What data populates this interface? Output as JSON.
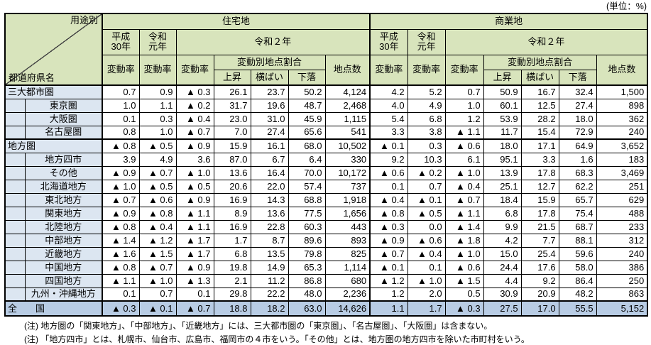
{
  "unit_label": "(単位：%)",
  "header": {
    "usage_label": "用途別",
    "prefecture_label": "都道府県名",
    "residential": "住宅地",
    "commercial": "商業地",
    "year_h30": "平成\n30年",
    "year_r1": "令和\n元年",
    "year_r2": "令和２年",
    "rate": "変動率",
    "share_group": "変動別地点割合",
    "up": "上昇",
    "flat": "横ばい",
    "down": "下落",
    "points": "地点数"
  },
  "columns": [
    "res-rate-h30",
    "res-rate-r1",
    "res-rate-r2",
    "res-up",
    "res-flat",
    "res-down",
    "res-points",
    "com-rate-h30",
    "com-rate-r1",
    "com-rate-r2",
    "com-up",
    "com-flat",
    "com-down",
    "com-points"
  ],
  "rows": [
    {
      "label": "三大都市圏",
      "parent": true,
      "section": false,
      "res": [
        "0.7",
        "0.9",
        "▲ 0.3",
        "26.1",
        "23.7",
        "50.2",
        "4,124"
      ],
      "com": [
        "4.2",
        "5.2",
        "0.7",
        "50.9",
        "16.7",
        "32.4",
        "1,500"
      ]
    },
    {
      "label": "東京圏",
      "parent": false,
      "section": false,
      "res": [
        "1.0",
        "1.1",
        "▲ 0.2",
        "31.7",
        "19.6",
        "48.7",
        "2,468"
      ],
      "com": [
        "4.0",
        "4.9",
        "1.0",
        "60.1",
        "12.5",
        "27.4",
        "898"
      ]
    },
    {
      "label": "大阪圏",
      "parent": false,
      "section": false,
      "res": [
        "0.1",
        "0.3",
        "▲ 0.4",
        "23.0",
        "31.0",
        "45.9",
        "1,115"
      ],
      "com": [
        "5.4",
        "6.8",
        "1.2",
        "53.9",
        "28.2",
        "18.0",
        "362"
      ]
    },
    {
      "label": "名古屋圏",
      "parent": false,
      "section": false,
      "res": [
        "0.8",
        "1.0",
        "▲ 0.7",
        "7.0",
        "27.4",
        "65.6",
        "541"
      ],
      "com": [
        "3.3",
        "3.8",
        "▲ 1.1",
        "11.7",
        "15.4",
        "72.9",
        "240"
      ]
    },
    {
      "label": "地方圏",
      "parent": true,
      "section": true,
      "res": [
        "▲ 0.8",
        "▲ 0.5",
        "▲ 0.9",
        "15.9",
        "16.1",
        "68.0",
        "10,502"
      ],
      "com": [
        "▲ 0.1",
        "0.3",
        "▲ 0.6",
        "18.0",
        "17.1",
        "64.9",
        "3,652"
      ]
    },
    {
      "label": "地方四市",
      "parent": false,
      "section": false,
      "res": [
        "3.9",
        "4.9",
        "3.6",
        "87.0",
        "6.7",
        "6.4",
        "330"
      ],
      "com": [
        "9.2",
        "10.3",
        "6.1",
        "95.1",
        "3.3",
        "1.6",
        "183"
      ]
    },
    {
      "label": "その他",
      "parent": false,
      "section": false,
      "res": [
        "▲ 0.9",
        "▲ 0.7",
        "▲ 1.0",
        "13.6",
        "16.4",
        "70.0",
        "10,172"
      ],
      "com": [
        "▲ 0.6",
        "▲ 0.2",
        "▲ 1.0",
        "13.9",
        "17.8",
        "68.3",
        "3,469"
      ]
    },
    {
      "label": "北海道地方",
      "parent": false,
      "section": false,
      "res": [
        "▲ 1.0",
        "▲ 0.5",
        "▲ 0.5",
        "20.6",
        "22.0",
        "57.4",
        "737"
      ],
      "com": [
        "0.1",
        "0.7",
        "▲ 0.4",
        "25.1",
        "12.7",
        "62.2",
        "251"
      ]
    },
    {
      "label": "東北地方",
      "parent": false,
      "section": false,
      "res": [
        "▲ 0.7",
        "▲ 0.6",
        "▲ 0.9",
        "16.9",
        "14.3",
        "68.8",
        "1,918"
      ],
      "com": [
        "▲ 0.4",
        "▲ 0.1",
        "▲ 0.7",
        "18.4",
        "15.9",
        "65.7",
        "629"
      ]
    },
    {
      "label": "関東地方",
      "parent": false,
      "section": false,
      "res": [
        "▲ 0.9",
        "▲ 0.8",
        "▲ 1.1",
        "8.9",
        "13.6",
        "77.5",
        "1,656"
      ],
      "com": [
        "▲ 0.8",
        "▲ 0.5",
        "▲ 1.1",
        "6.8",
        "17.8",
        "75.4",
        "488"
      ]
    },
    {
      "label": "北陸地方",
      "parent": false,
      "section": false,
      "res": [
        "▲ 0.8",
        "▲ 0.4",
        "▲ 1.1",
        "16.9",
        "22.8",
        "60.3",
        "443"
      ],
      "com": [
        "▲ 0.3",
        "0.0",
        "▲ 1.4",
        "9.9",
        "21.5",
        "68.7",
        "233"
      ]
    },
    {
      "label": "中部地方",
      "parent": false,
      "section": false,
      "res": [
        "▲ 1.4",
        "▲ 1.2",
        "▲ 1.7",
        "1.7",
        "8.7",
        "89.6",
        "893"
      ],
      "com": [
        "▲ 0.9",
        "▲ 0.6",
        "▲ 1.8",
        "4.2",
        "7.7",
        "88.1",
        "312"
      ]
    },
    {
      "label": "近畿地方",
      "parent": false,
      "section": false,
      "res": [
        "▲ 1.6",
        "▲ 1.5",
        "▲ 1.7",
        "6.8",
        "13.5",
        "79.8",
        "825"
      ],
      "com": [
        "▲ 0.7",
        "▲ 0.4",
        "▲ 1.0",
        "15.0",
        "25.4",
        "59.6",
        "240"
      ]
    },
    {
      "label": "中国地方",
      "parent": false,
      "section": false,
      "res": [
        "▲ 0.8",
        "▲ 0.7",
        "▲ 0.9",
        "19.8",
        "14.9",
        "65.3",
        "1,114"
      ],
      "com": [
        "▲ 0.1",
        "0.1",
        "▲ 0.6",
        "24.4",
        "17.6",
        "58.0",
        "386"
      ]
    },
    {
      "label": "四国地方",
      "parent": false,
      "section": false,
      "res": [
        "▲ 1.1",
        "▲ 1.0",
        "▲ 1.3",
        "2.1",
        "11.2",
        "86.8",
        "680"
      ],
      "com": [
        "▲ 1.2",
        "▲ 1.0",
        "▲ 1.5",
        "4.4",
        "9.2",
        "86.4",
        "250"
      ]
    },
    {
      "label": "九州・沖縄地方",
      "parent": false,
      "section": false,
      "res": [
        "0.1",
        "0.7",
        "0.1",
        "29.8",
        "22.2",
        "48.0",
        "2,236"
      ],
      "com": [
        "1.2",
        "2.0",
        "0.5",
        "30.9",
        "20.9",
        "48.2",
        "863"
      ]
    }
  ],
  "total": {
    "label": "全　　国",
    "res": [
      "▲ 0.3",
      "▲ 0.1",
      "▲ 0.7",
      "18.8",
      "18.2",
      "63.0",
      "14,626"
    ],
    "com": [
      "1.1",
      "1.7",
      "▲ 0.3",
      "27.5",
      "17.0",
      "55.5",
      "5,152"
    ]
  },
  "notes": [
    "(注) 地方圏の「関東地方」、「中部地方」、「近畿地方」には、三大都市圏の「東京圏」、「名古屋圏」、「大阪圏」は含まない。",
    "(注) 「地方四市」とは、札幌市、仙台市、広島市、福岡市の４市をいう。「その他」とは、地方圏の地方四市を除いた市町村をいう。"
  ],
  "colors": {
    "header_bg": "#D8E4BC",
    "label_bg": "#DCE6F1",
    "total_bg": "#B8CCE4",
    "border": "#000000"
  }
}
